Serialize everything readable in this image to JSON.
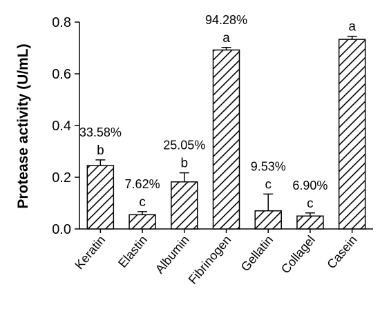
{
  "chart_data": {
    "type": "bar",
    "title": "",
    "xlabel": "",
    "ylabel": "Protease activity (U/mL)",
    "ylim": [
      0,
      0.8
    ],
    "yticks": [
      "0.0",
      "0.2",
      "0.4",
      "0.6",
      "0.8"
    ],
    "grid": false,
    "bar_pattern": "diagonal-hatch",
    "categories": [
      "Keratin",
      "Elastin",
      "Albumin",
      "Fibrinogen",
      "Gellatin",
      "Collagel",
      "Casein"
    ],
    "values": [
      0.245,
      0.055,
      0.182,
      0.692,
      0.07,
      0.05,
      0.733
    ],
    "errors": [
      0.022,
      0.012,
      0.035,
      0.01,
      0.065,
      0.012,
      0.012
    ],
    "percent_labels": [
      "33.58%",
      "7.62%",
      "25.05%",
      "94.28%",
      "9.53%",
      "6.90%",
      ""
    ],
    "significance_letters": [
      "b",
      "c",
      "b",
      "a",
      "c",
      "c",
      "a"
    ]
  }
}
